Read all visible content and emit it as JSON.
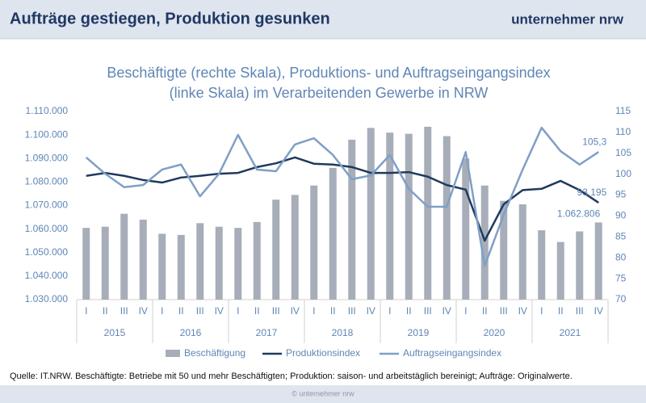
{
  "header": {
    "title": "Aufträge gestiegen, Produktion gesunken",
    "logo": "unternehmer nrw"
  },
  "chart_data": {
    "type": "bar_line",
    "title": [
      "Beschäftigte (rechte Skala), Produktions- und Auftragseingangsindex",
      "(linke Skala) im Verarbeitenden Gewerbe in NRW"
    ],
    "categories": [
      "I",
      "II",
      "III",
      "IV",
      "I",
      "II",
      "III",
      "IV",
      "I",
      "II",
      "III",
      "IV",
      "I",
      "II",
      "III",
      "IV",
      "I",
      "II",
      "III",
      "IV",
      "I",
      "II",
      "III",
      "IV",
      "I",
      "II",
      "III",
      "IV"
    ],
    "year_groups": [
      "2015",
      "2016",
      "2017",
      "2018",
      "2019",
      "2020",
      "2021"
    ],
    "ylim": [
      1030000,
      1110000
    ],
    "yticks": [
      {
        "value": 1030000,
        "label": "1.030.000"
      },
      {
        "value": 1040000,
        "label": "1.040.000"
      },
      {
        "value": 1050000,
        "label": "1.050.000"
      },
      {
        "value": 1060000,
        "label": "1.060.000"
      },
      {
        "value": 1070000,
        "label": "1.070.000"
      },
      {
        "value": 1080000,
        "label": "1.080.000"
      },
      {
        "value": 1090000,
        "label": "1.090.000"
      },
      {
        "value": 1100000,
        "label": "1.100.000"
      },
      {
        "value": 1110000,
        "label": "1.110.000"
      }
    ],
    "y2lim": [
      70,
      115
    ],
    "y2ticks": [
      70,
      75,
      80,
      85,
      90,
      95,
      100,
      105,
      110,
      115
    ],
    "legend": "bottom",
    "series": [
      {
        "name": "Beschäftigung",
        "type": "bar",
        "color": "#a7aeb9",
        "values": [
          1060500,
          1061000,
          1066500,
          1064000,
          1058000,
          1057500,
          1062500,
          1061000,
          1060500,
          1063000,
          1072500,
          1074500,
          1078500,
          1086000,
          1098000,
          1103000,
          1101000,
          1100500,
          1103500,
          1099500,
          1090000,
          1078500,
          1072000,
          1070500,
          1059500,
          1054500,
          1059000,
          1062806
        ],
        "value_labels": [
          null,
          null,
          null,
          null,
          null,
          null,
          null,
          null,
          null,
          null,
          null,
          null,
          null,
          null,
          null,
          null,
          null,
          null,
          null,
          null,
          null,
          null,
          null,
          null,
          null,
          null,
          null,
          "1.062.806"
        ]
      },
      {
        "name": "Produktionsindex",
        "type": "line",
        "axis": "y2",
        "color": "#1f3a5c",
        "values": [
          99.6,
          100.3,
          99.6,
          98.6,
          98.0,
          99.2,
          99.6,
          100.1,
          100.3,
          101.7,
          102.6,
          104.0,
          102.5,
          102.3,
          101.7,
          100.3,
          100.3,
          100.5,
          99.4,
          97.4,
          96.3,
          84.1,
          92.8,
          96.2,
          96.5,
          98.4,
          96.2,
          93.195
        ],
        "value_labels": [
          null,
          null,
          null,
          null,
          null,
          null,
          null,
          null,
          null,
          null,
          null,
          null,
          null,
          null,
          null,
          null,
          null,
          null,
          null,
          null,
          null,
          null,
          null,
          null,
          null,
          null,
          null,
          "93,195"
        ]
      },
      {
        "name": "Auftragseingangsindex",
        "type": "line",
        "axis": "y2",
        "color": "#7f9fc6",
        "values": [
          104.0,
          100.1,
          96.9,
          97.4,
          101.1,
          102.3,
          94.7,
          100.1,
          109.4,
          101.1,
          100.7,
          107.1,
          108.6,
          104.6,
          98.8,
          99.7,
          104.6,
          96.5,
          92.2,
          92.2,
          105.3,
          78.1,
          90.3,
          101.1,
          111.1,
          105.5,
          102.3,
          105.3
        ],
        "value_labels": [
          null,
          null,
          null,
          null,
          null,
          null,
          null,
          null,
          null,
          null,
          null,
          null,
          null,
          null,
          null,
          null,
          null,
          null,
          null,
          null,
          null,
          null,
          null,
          null,
          null,
          null,
          null,
          "105,3"
        ]
      }
    ]
  },
  "footnote": "Quelle: IT.NRW. Beschäftigte: Betriebe mit 50 und mehr Beschäftigten; Produktion: saison- und arbeitstäglich bereinigt; Aufträge: Originalwerte.",
  "footer": "© unternehmer nrw"
}
